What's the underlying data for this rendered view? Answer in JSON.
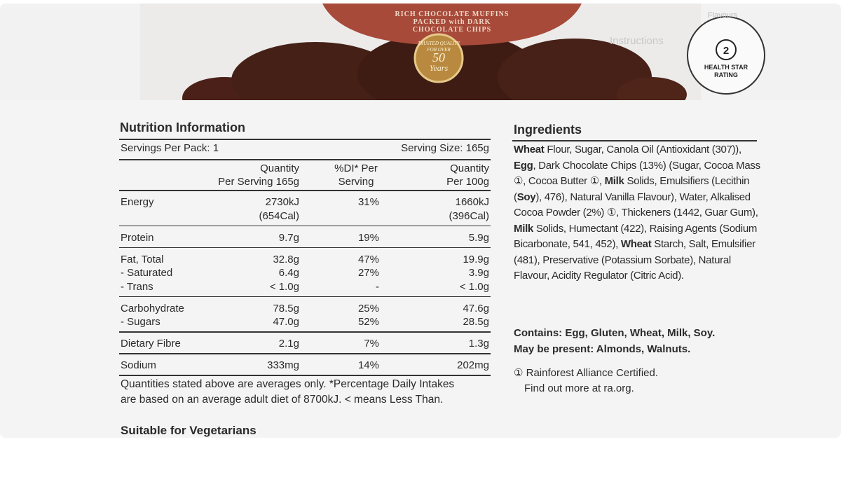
{
  "package": {
    "banner": [
      "RICH CHOCOLATE MUFFINS",
      "PACKED with DARK",
      "CHOCOLATE CHIPS"
    ],
    "badge": [
      "TRUSTED QUALITY",
      "FOR OVER",
      "50",
      "Years"
    ],
    "side_text": [
      "Flavours",
      "Instructions"
    ],
    "health_star": {
      "rating": "2",
      "label": [
        "HEALTH STAR",
        "RATING"
      ]
    }
  },
  "nutrition": {
    "title": "Nutrition Information",
    "servings_per_pack": "Servings Per Pack: 1",
    "serving_size": "Serving Size: 165g",
    "columns": [
      [
        "Quantity",
        "Per Serving 165g"
      ],
      [
        "%DI* Per",
        "Serving"
      ],
      [
        "Quantity",
        "Per 100g"
      ]
    ],
    "rows": [
      {
        "label": [
          "Energy"
        ],
        "per_serving": [
          "2730kJ",
          "(654Cal)"
        ],
        "di": [
          "31%"
        ],
        "per_100g": [
          "1660kJ",
          "(396Cal)"
        ]
      },
      {
        "label": [
          "Protein"
        ],
        "per_serving": [
          "9.7g"
        ],
        "di": [
          "19%"
        ],
        "per_100g": [
          "5.9g"
        ]
      },
      {
        "label": [
          "Fat, Total",
          "- Saturated",
          "- Trans"
        ],
        "per_serving": [
          "32.8g",
          "6.4g",
          "< 1.0g"
        ],
        "di": [
          "47%",
          "27%",
          "-"
        ],
        "per_100g": [
          "19.9g",
          "3.9g",
          "< 1.0g"
        ]
      },
      {
        "label": [
          "Carbohydrate",
          "- Sugars"
        ],
        "per_serving": [
          "78.5g",
          "47.0g"
        ],
        "di": [
          "25%",
          "52%"
        ],
        "per_100g": [
          "47.6g",
          "28.5g"
        ]
      },
      {
        "label": [
          "Dietary Fibre"
        ],
        "per_serving": [
          "2.1g"
        ],
        "di": [
          "7%"
        ],
        "per_100g": [
          "1.3g"
        ]
      },
      {
        "label": [
          "Sodium"
        ],
        "per_serving": [
          "333mg"
        ],
        "di": [
          "14%"
        ],
        "per_100g": [
          "202mg"
        ]
      }
    ],
    "footnote": [
      "Quantities stated above are averages only. *Percentage Daily Intakes",
      "are based on an average adult diet of 8700kJ. < means Less Than."
    ],
    "suitable": "Suitable for Vegetarians"
  },
  "ingredients": {
    "title": "Ingredients",
    "runs": [
      {
        "text": "Wheat",
        "bold": true
      },
      {
        "text": " Flour, Sugar, Canola Oil (Antioxidant (307)), ",
        "bold": false
      },
      {
        "text": "Egg",
        "bold": true
      },
      {
        "text": ", Dark Chocolate Chips (13%) (Sugar, Cocoa Mass ①, Cocoa Butter ①, ",
        "bold": false
      },
      {
        "text": "Milk",
        "bold": true
      },
      {
        "text": " Solids, Emulsifiers (Lecithin (",
        "bold": false
      },
      {
        "text": "Soy",
        "bold": true
      },
      {
        "text": "), 476), Natural Vanilla Flavour), Water, Alkalised Cocoa Powder (2%) ①, Thickeners (1442, Guar Gum), ",
        "bold": false
      },
      {
        "text": "Milk",
        "bold": true
      },
      {
        "text": " Solids, Humectant (422), Raising Agents (Sodium Bicarbonate, 541, 452), ",
        "bold": false
      },
      {
        "text": "Wheat",
        "bold": true
      },
      {
        "text": " Starch, Salt, Emulsifier (481), Preservative (Potassium Sorbate), Natural Flavour, Acidity Regulator (Citric Acid).",
        "bold": false
      }
    ],
    "contains": "Contains: Egg, Gluten, Wheat, Milk, Soy.",
    "may_contain": "May be present: Almonds, Walnuts.",
    "certified": [
      "① Rainforest Alliance Certified.",
      "Find out more at ra.org."
    ]
  }
}
